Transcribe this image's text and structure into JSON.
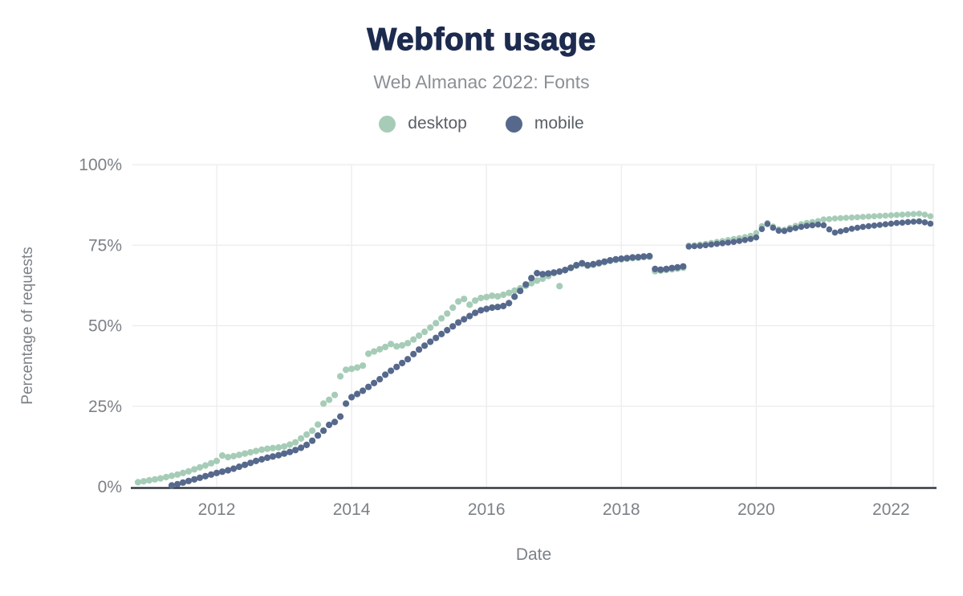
{
  "chart_data": {
    "type": "scatter",
    "title": "Webfont usage",
    "subtitle": "Web Almanac 2022: Fonts",
    "xlabel": "Date",
    "ylabel": "Percentage of requests",
    "xlim": [
      2010.75,
      2022.65
    ],
    "ylim": [
      0,
      100
    ],
    "grid": true,
    "legend_position": "top",
    "x_ticks": [
      {
        "value": 2012,
        "label": "2012"
      },
      {
        "value": 2014,
        "label": "2014"
      },
      {
        "value": 2016,
        "label": "2016"
      },
      {
        "value": 2018,
        "label": "2018"
      },
      {
        "value": 2020,
        "label": "2020"
      },
      {
        "value": 2022,
        "label": "2022"
      }
    ],
    "y_ticks": [
      {
        "value": 0,
        "label": "0%"
      },
      {
        "value": 25,
        "label": "25%"
      },
      {
        "value": 50,
        "label": "50%"
      },
      {
        "value": 75,
        "label": "75%"
      },
      {
        "value": 100,
        "label": "100%"
      }
    ],
    "colors": {
      "title": "#1d2b4f",
      "subtitle_text": "#8b9096",
      "axis_line": "#343a40",
      "gridline": "#ececec",
      "tick_text": "#7c8187"
    },
    "series": [
      {
        "name": "desktop",
        "color": "#a6ccb7",
        "points": [
          [
            2010.833,
            1.4
          ],
          [
            2010.917,
            1.7
          ],
          [
            2011,
            2
          ],
          [
            2011.083,
            2.3
          ],
          [
            2011.167,
            2.6
          ],
          [
            2011.25,
            3
          ],
          [
            2011.333,
            3.4
          ],
          [
            2011.417,
            3.8
          ],
          [
            2011.5,
            4.3
          ],
          [
            2011.583,
            4.8
          ],
          [
            2011.667,
            5.4
          ],
          [
            2011.75,
            6
          ],
          [
            2011.833,
            6.6
          ],
          [
            2011.917,
            7.3
          ],
          [
            2012,
            8
          ],
          [
            2012.083,
            9.7
          ],
          [
            2012.167,
            9.2
          ],
          [
            2012.25,
            9.5
          ],
          [
            2012.333,
            9.9
          ],
          [
            2012.417,
            10.3
          ],
          [
            2012.5,
            10.7
          ],
          [
            2012.583,
            11.1
          ],
          [
            2012.667,
            11.5
          ],
          [
            2012.75,
            11.8
          ],
          [
            2012.833,
            12
          ],
          [
            2012.917,
            12.2
          ],
          [
            2013,
            12.5
          ],
          [
            2013.083,
            13.1
          ],
          [
            2013.167,
            13.8
          ],
          [
            2013.25,
            15
          ],
          [
            2013.333,
            16.2
          ],
          [
            2013.417,
            17.4
          ],
          [
            2013.5,
            19.3
          ],
          [
            2013.583,
            25.8
          ],
          [
            2013.667,
            27
          ],
          [
            2013.75,
            28.5
          ],
          [
            2013.833,
            34.3
          ],
          [
            2013.917,
            36.3
          ],
          [
            2014,
            36.6
          ],
          [
            2014.083,
            37
          ],
          [
            2014.167,
            37.6
          ],
          [
            2014.25,
            41.3
          ],
          [
            2014.333,
            42
          ],
          [
            2014.417,
            42.7
          ],
          [
            2014.5,
            43.4
          ],
          [
            2014.583,
            44.3
          ],
          [
            2014.667,
            43.6
          ],
          [
            2014.75,
            43.9
          ],
          [
            2014.833,
            44.6
          ],
          [
            2014.917,
            45.7
          ],
          [
            2015,
            46.9
          ],
          [
            2015.083,
            48.1
          ],
          [
            2015.167,
            49.4
          ],
          [
            2015.25,
            50.8
          ],
          [
            2015.333,
            52.3
          ],
          [
            2015.417,
            53.8
          ],
          [
            2015.5,
            55.6
          ],
          [
            2015.583,
            57.5
          ],
          [
            2015.667,
            58.3
          ],
          [
            2015.75,
            56.5
          ],
          [
            2015.833,
            57.8
          ],
          [
            2015.917,
            58.6
          ],
          [
            2016,
            58.9
          ],
          [
            2016.083,
            59.3
          ],
          [
            2016.167,
            59.1
          ],
          [
            2016.25,
            59.6
          ],
          [
            2016.333,
            60.2
          ],
          [
            2016.417,
            60.9
          ],
          [
            2016.5,
            61.6
          ],
          [
            2016.583,
            62.4
          ],
          [
            2016.667,
            63.2
          ],
          [
            2016.75,
            64
          ],
          [
            2016.833,
            64.6
          ],
          [
            2016.917,
            65.4
          ],
          [
            2017,
            66.3
          ],
          [
            2017.083,
            62.3
          ],
          [
            2017.167,
            67.2
          ],
          [
            2017.25,
            67.9
          ],
          [
            2017.333,
            68.6
          ],
          [
            2017.417,
            69.2
          ],
          [
            2017.5,
            68.6
          ],
          [
            2017.583,
            68.9
          ],
          [
            2017.667,
            69.3
          ],
          [
            2017.75,
            69.7
          ],
          [
            2017.833,
            70.1
          ],
          [
            2017.917,
            70.4
          ],
          [
            2018,
            70.6
          ],
          [
            2018.083,
            70.8
          ],
          [
            2018.167,
            71
          ],
          [
            2018.25,
            71.1
          ],
          [
            2018.333,
            71.3
          ],
          [
            2018.417,
            71.4
          ],
          [
            2018.5,
            66.9
          ],
          [
            2018.583,
            67.1
          ],
          [
            2018.667,
            67.3
          ],
          [
            2018.75,
            67.5
          ],
          [
            2018.833,
            67.7
          ],
          [
            2018.917,
            68
          ],
          [
            2019,
            74.9
          ],
          [
            2019.083,
            75
          ],
          [
            2019.167,
            75.2
          ],
          [
            2019.25,
            75.4
          ],
          [
            2019.333,
            75.7
          ],
          [
            2019.417,
            76
          ],
          [
            2019.5,
            76.3
          ],
          [
            2019.583,
            76.6
          ],
          [
            2019.667,
            76.9
          ],
          [
            2019.75,
            77.2
          ],
          [
            2019.833,
            77.5
          ],
          [
            2019.917,
            77.9
          ],
          [
            2020,
            78.8
          ],
          [
            2020.083,
            80.9
          ],
          [
            2020.167,
            81.9
          ],
          [
            2020.25,
            80.8
          ],
          [
            2020.333,
            79.9
          ],
          [
            2020.417,
            79.8
          ],
          [
            2020.5,
            80.4
          ],
          [
            2020.583,
            81
          ],
          [
            2020.667,
            81.5
          ],
          [
            2020.75,
            81.9
          ],
          [
            2020.833,
            82.2
          ],
          [
            2020.917,
            82.5
          ],
          [
            2021,
            83
          ],
          [
            2021.083,
            83.1
          ],
          [
            2021.167,
            83.3
          ],
          [
            2021.25,
            83.4
          ],
          [
            2021.333,
            83.5
          ],
          [
            2021.417,
            83.6
          ],
          [
            2021.5,
            83.7
          ],
          [
            2021.583,
            83.8
          ],
          [
            2021.667,
            83.9
          ],
          [
            2021.75,
            84
          ],
          [
            2021.833,
            84.1
          ],
          [
            2021.917,
            84.2
          ],
          [
            2022,
            84.3
          ],
          [
            2022.083,
            84.4
          ],
          [
            2022.167,
            84.5
          ],
          [
            2022.25,
            84.6
          ],
          [
            2022.333,
            84.7
          ],
          [
            2022.417,
            84.8
          ],
          [
            2022.5,
            84.5
          ],
          [
            2022.583,
            84
          ]
        ]
      },
      {
        "name": "mobile",
        "color": "#56698c",
        "points": [
          [
            2011.333,
            0.4
          ],
          [
            2011.417,
            0.8
          ],
          [
            2011.5,
            1.3
          ],
          [
            2011.583,
            1.8
          ],
          [
            2011.667,
            2.3
          ],
          [
            2011.75,
            2.8
          ],
          [
            2011.833,
            3.3
          ],
          [
            2011.917,
            3.8
          ],
          [
            2012,
            4.3
          ],
          [
            2012.083,
            4.7
          ],
          [
            2012.167,
            5.1
          ],
          [
            2012.25,
            5.6
          ],
          [
            2012.333,
            6.2
          ],
          [
            2012.417,
            6.8
          ],
          [
            2012.5,
            7.4
          ],
          [
            2012.583,
            8
          ],
          [
            2012.667,
            8.5
          ],
          [
            2012.75,
            9
          ],
          [
            2012.833,
            9.4
          ],
          [
            2012.917,
            9.8
          ],
          [
            2013,
            10.3
          ],
          [
            2013.083,
            10.8
          ],
          [
            2013.167,
            11.4
          ],
          [
            2013.25,
            12.1
          ],
          [
            2013.333,
            13
          ],
          [
            2013.417,
            14.3
          ],
          [
            2013.5,
            15.9
          ],
          [
            2013.583,
            17.4
          ],
          [
            2013.667,
            19.2
          ],
          [
            2013.75,
            20.1
          ],
          [
            2013.833,
            21.8
          ],
          [
            2013.917,
            25.8
          ],
          [
            2014,
            27.8
          ],
          [
            2014.083,
            28.8
          ],
          [
            2014.167,
            29.8
          ],
          [
            2014.25,
            31
          ],
          [
            2014.333,
            32.2
          ],
          [
            2014.417,
            33.4
          ],
          [
            2014.5,
            34.8
          ],
          [
            2014.583,
            36
          ],
          [
            2014.667,
            37.2
          ],
          [
            2014.75,
            38.4
          ],
          [
            2014.833,
            39.6
          ],
          [
            2014.917,
            41.2
          ],
          [
            2015,
            42.6
          ],
          [
            2015.083,
            43.8
          ],
          [
            2015.167,
            45
          ],
          [
            2015.25,
            46.2
          ],
          [
            2015.333,
            47.4
          ],
          [
            2015.417,
            48.6
          ],
          [
            2015.5,
            49.8
          ],
          [
            2015.583,
            51
          ],
          [
            2015.667,
            52
          ],
          [
            2015.75,
            53
          ],
          [
            2015.833,
            54
          ],
          [
            2015.917,
            54.8
          ],
          [
            2016,
            55.2
          ],
          [
            2016.083,
            55.6
          ],
          [
            2016.167,
            55.8
          ],
          [
            2016.25,
            56.1
          ],
          [
            2016.333,
            57
          ],
          [
            2016.417,
            59
          ],
          [
            2016.5,
            60.8
          ],
          [
            2016.583,
            62.8
          ],
          [
            2016.667,
            64.8
          ],
          [
            2016.75,
            66.3
          ],
          [
            2016.833,
            66
          ],
          [
            2016.917,
            66.2
          ],
          [
            2017,
            66.5
          ],
          [
            2017.083,
            66.8
          ],
          [
            2017.167,
            67.3
          ],
          [
            2017.25,
            68
          ],
          [
            2017.333,
            68.8
          ],
          [
            2017.417,
            69.4
          ],
          [
            2017.5,
            68.8
          ],
          [
            2017.583,
            69.1
          ],
          [
            2017.667,
            69.5
          ],
          [
            2017.75,
            69.9
          ],
          [
            2017.833,
            70.3
          ],
          [
            2017.917,
            70.6
          ],
          [
            2018,
            70.8
          ],
          [
            2018.083,
            71
          ],
          [
            2018.167,
            71.2
          ],
          [
            2018.25,
            71.3
          ],
          [
            2018.333,
            71.5
          ],
          [
            2018.417,
            71.6
          ],
          [
            2018.5,
            67.6
          ],
          [
            2018.583,
            67.4
          ],
          [
            2018.667,
            67.6
          ],
          [
            2018.75,
            67.9
          ],
          [
            2018.833,
            68.1
          ],
          [
            2018.917,
            68.4
          ],
          [
            2019,
            74.6
          ],
          [
            2019.083,
            74.7
          ],
          [
            2019.167,
            74.8
          ],
          [
            2019.25,
            75
          ],
          [
            2019.333,
            75.2
          ],
          [
            2019.417,
            75.4
          ],
          [
            2019.5,
            75.6
          ],
          [
            2019.583,
            75.8
          ],
          [
            2019.667,
            76
          ],
          [
            2019.75,
            76.3
          ],
          [
            2019.833,
            76.6
          ],
          [
            2019.917,
            76.9
          ],
          [
            2020,
            77.4
          ],
          [
            2020.083,
            80
          ],
          [
            2020.167,
            81.6
          ],
          [
            2020.25,
            80.4
          ],
          [
            2020.333,
            79.5
          ],
          [
            2020.417,
            79.4
          ],
          [
            2020.5,
            79.9
          ],
          [
            2020.583,
            80.3
          ],
          [
            2020.667,
            80.7
          ],
          [
            2020.75,
            81
          ],
          [
            2020.833,
            81.2
          ],
          [
            2020.917,
            81.4
          ],
          [
            2021,
            81.2
          ],
          [
            2021.083,
            79.9
          ],
          [
            2021.167,
            78.9
          ],
          [
            2021.25,
            79.3
          ],
          [
            2021.333,
            79.7
          ],
          [
            2021.417,
            80.1
          ],
          [
            2021.5,
            80.4
          ],
          [
            2021.583,
            80.7
          ],
          [
            2021.667,
            80.9
          ],
          [
            2021.75,
            81.1
          ],
          [
            2021.833,
            81.3
          ],
          [
            2021.917,
            81.5
          ],
          [
            2022,
            81.7
          ],
          [
            2022.083,
            81.9
          ],
          [
            2022.167,
            82
          ],
          [
            2022.25,
            82.2
          ],
          [
            2022.333,
            82.3
          ],
          [
            2022.417,
            82.4
          ],
          [
            2022.5,
            82.1
          ],
          [
            2022.583,
            81.7
          ]
        ]
      }
    ]
  }
}
